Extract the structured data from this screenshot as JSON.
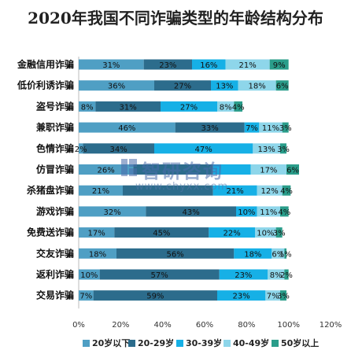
{
  "chart_data": {
    "type": "bar",
    "orientation": "horizontal",
    "stacked": true,
    "title": "2020年我国不同诈骗类型的年龄结构分布",
    "categories": [
      "金融信用诈骗",
      "低价利诱诈骗",
      "盗号诈骗",
      "兼职诈骗",
      "色情诈骗",
      "仿冒诈骗",
      "杀猪盘诈骗",
      "游戏诈骗",
      "免费送诈骗",
      "交友诈骗",
      "返利诈骗",
      "交易诈骗"
    ],
    "series": [
      {
        "name": "20岁以下",
        "color": "#4f9fc4",
        "values": [
          31,
          36,
          8,
          46,
          2,
          26,
          21,
          32,
          17,
          18,
          10,
          7
        ],
        "labels": [
          "31%",
          "36%",
          "8%",
          "46%",
          "2%",
          "26%",
          "21%",
          "32%",
          "17%",
          "18%",
          "10%",
          "7%"
        ]
      },
      {
        "name": "20-29岁",
        "color": "#2c6c8c",
        "values": [
          23,
          27,
          31,
          33,
          34,
          38,
          43,
          43,
          45,
          56,
          57,
          59
        ],
        "labels": [
          "23%",
          "27%",
          "31%",
          "33%",
          "34%",
          "",
          "",
          "43%",
          "45%",
          "56%",
          "57%",
          "59%"
        ]
      },
      {
        "name": "30-39岁",
        "color": "#16b0e6",
        "values": [
          16,
          13,
          27,
          7,
          47,
          18,
          21,
          10,
          22,
          18,
          23,
          23
        ],
        "labels": [
          "16%",
          "13%",
          "27%",
          "7%",
          "47%",
          "",
          "21%",
          "10%",
          "22%",
          "18%",
          "23%",
          "23%"
        ]
      },
      {
        "name": "40-49岁",
        "color": "#8ed6ea",
        "values": [
          21,
          18,
          8,
          11,
          13,
          17,
          12,
          11,
          10,
          6,
          8,
          7
        ],
        "labels": [
          "21%",
          "18%",
          "8%",
          "11%",
          "13%",
          "17%",
          "12%",
          "11%",
          "10%",
          "6%",
          "8%",
          "7%"
        ]
      },
      {
        "name": "50岁以上",
        "color": "#2a9d8a",
        "values": [
          9,
          6,
          4,
          3,
          3,
          6,
          4,
          4,
          3,
          1,
          2,
          3
        ],
        "labels": [
          "9%",
          "6%",
          "4%",
          "3%",
          "3%",
          "6%",
          "4%",
          "4%",
          "3%",
          "1%",
          "2%",
          "3%"
        ]
      }
    ],
    "xlim": [
      0,
      120
    ],
    "xticks": [
      "0%",
      "20%",
      "40%",
      "60%",
      "80%",
      "100%",
      "120%"
    ],
    "grid": false,
    "legend_position": "bottom"
  },
  "watermark": {
    "brand": "智研咨询",
    "url": "www.chyxx.com"
  }
}
